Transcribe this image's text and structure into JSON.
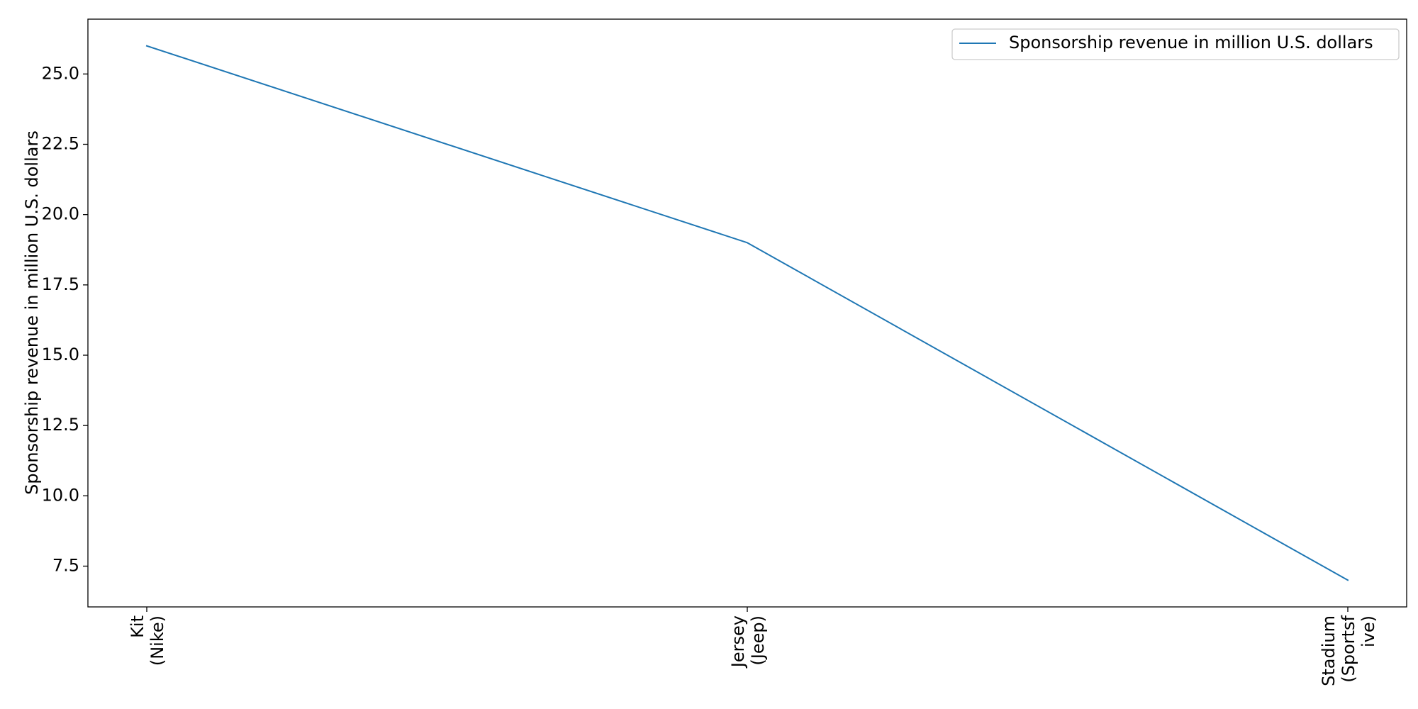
{
  "chart_data": {
    "type": "line",
    "categories": [
      [
        "Kit",
        "(Nike)"
      ],
      [
        "Jersey",
        "(Jeep)"
      ],
      [
        "Stadium",
        "(Sportsf",
        "ive)"
      ]
    ],
    "series": [
      {
        "name": "Sponsorship revenue in million U.S. dollars",
        "values": [
          26,
          19,
          7
        ],
        "color": "#1f77b4"
      }
    ],
    "xlabel": "",
    "ylabel": "Sponsorship revenue in million U.S. dollars",
    "ylim": [
      6.05,
      26.95
    ],
    "yticks": [
      "7.5",
      "10.0",
      "12.5",
      "15.0",
      "17.5",
      "20.0",
      "22.5",
      "25.0"
    ],
    "grid": false,
    "legend_position": "top-right"
  }
}
